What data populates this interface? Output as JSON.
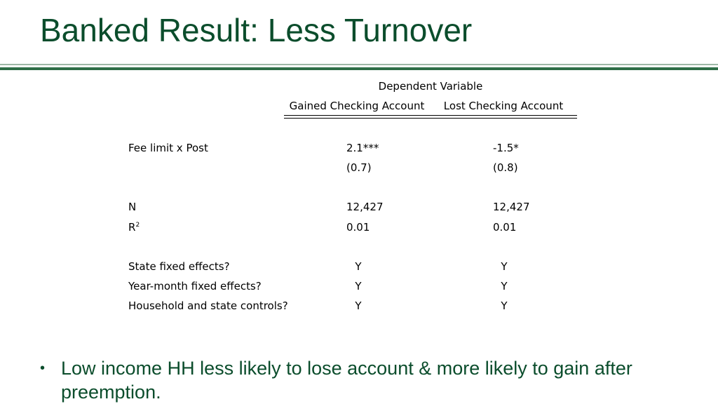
{
  "slide": {
    "title": "Banked Result: Less Turnover",
    "bullets": [
      {
        "marker": "•",
        "text": "Low income HH less likely to lose account & more likely to gain after preemption."
      }
    ]
  },
  "table": {
    "header": "Dependent Variable",
    "columns": [
      "Gained Checking Account",
      "Lost Checking Account"
    ],
    "rows": [
      {
        "label": "Fee limit x Post",
        "values": [
          "2.1***",
          "-1.5*"
        ]
      },
      {
        "label": "",
        "values": [
          "(0.7)",
          "(0.8)"
        ]
      },
      {
        "label": "N",
        "values": [
          "12,427",
          "12,427"
        ]
      },
      {
        "label": "R",
        "label_sup": "2",
        "values": [
          "0.01",
          "0.01"
        ]
      },
      {
        "label": "State fixed effects?",
        "values": [
          "Y",
          "Y"
        ]
      },
      {
        "label": "Year-month fixed effects?",
        "values": [
          "Y",
          "Y"
        ]
      },
      {
        "label": "Household and state controls?",
        "values": [
          "Y",
          "Y"
        ]
      }
    ]
  },
  "colors": {
    "title": "#0b4d2c",
    "rule_thin": "#9db8a6",
    "rule_thick": "#2e6e47"
  }
}
